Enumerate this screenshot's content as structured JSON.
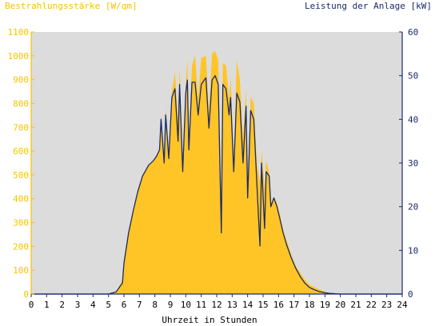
{
  "chart_data": {
    "type": "area",
    "y_left_label": "Bestrahlungsstärke [W/qm]",
    "y_right_label": "Leistung der Anlage [kW]",
    "xlabel": "Uhrzeit in Stunden",
    "x_ticks": [
      "0",
      "1",
      "2",
      "3",
      "4",
      "5",
      "6",
      "7",
      "8",
      "9",
      "10",
      "11",
      "12",
      "13",
      "14",
      "15",
      "16",
      "17",
      "18",
      "19",
      "20",
      "21",
      "22",
      "23",
      "24"
    ],
    "y_left_ticks": [
      "0",
      "100",
      "200",
      "300",
      "400",
      "500",
      "600",
      "700",
      "800",
      "900",
      "1000",
      "1100"
    ],
    "y_right_ticks": [
      "0",
      "10",
      "20",
      "30",
      "40",
      "50",
      "60"
    ],
    "xlim": [
      0,
      24
    ],
    "ylim_left": [
      0,
      1100
    ],
    "ylim_right": [
      0,
      60
    ],
    "grid": false,
    "series": [
      {
        "axis": "left",
        "style": "area",
        "color": "#ffc526",
        "x": [
          0,
          5,
          5.5,
          5.9,
          6,
          6.3,
          6.6,
          6.9,
          7.2,
          7.6,
          7.9,
          8.1,
          8.3,
          8.4,
          8.6,
          8.7,
          8.9,
          9.1,
          9.3,
          9.5,
          9.6,
          9.8,
          10.0,
          10.1,
          10.2,
          10.4,
          10.6,
          10.8,
          11.0,
          11.3,
          11.5,
          11.7,
          11.9,
          12.1,
          12.3,
          12.4,
          12.6,
          12.8,
          12.9,
          13.1,
          13.3,
          13.5,
          13.7,
          13.9,
          14.0,
          14.2,
          14.4,
          14.6,
          14.8,
          14.9,
          15.1,
          15.2,
          15.4,
          15.5,
          15.7,
          15.9,
          16.1,
          16.3,
          16.5,
          16.8,
          17.1,
          17.4,
          17.7,
          18.0,
          18.3,
          18.6,
          19.0,
          19.3,
          19.7,
          20.0,
          20.2,
          20.5,
          24
        ],
        "values": [
          0,
          0,
          10,
          60,
          150,
          270,
          360,
          440,
          500,
          540,
          560,
          580,
          610,
          750,
          560,
          780,
          600,
          850,
          930,
          720,
          950,
          560,
          880,
          990,
          640,
          960,
          1000,
          820,
          990,
          1000,
          760,
          1010,
          1020,
          980,
          400,
          970,
          960,
          820,
          910,
          560,
          980,
          900,
          650,
          860,
          470,
          830,
          800,
          550,
          470,
          600,
          440,
          560,
          510,
          380,
          410,
          380,
          330,
          270,
          230,
          170,
          120,
          90,
          60,
          40,
          30,
          20,
          10,
          5,
          3,
          2,
          0,
          0,
          0
        ]
      },
      {
        "axis": "right",
        "style": "line",
        "color": "#1a2a6c",
        "x": [
          0,
          5,
          5.5,
          5.9,
          6,
          6.3,
          6.6,
          6.9,
          7.2,
          7.6,
          7.9,
          8.1,
          8.3,
          8.4,
          8.6,
          8.7,
          8.9,
          9.1,
          9.3,
          9.5,
          9.6,
          9.8,
          10.0,
          10.1,
          10.2,
          10.4,
          10.6,
          10.8,
          11.0,
          11.3,
          11.5,
          11.7,
          11.9,
          12.1,
          12.3,
          12.4,
          12.6,
          12.8,
          12.9,
          13.1,
          13.3,
          13.5,
          13.7,
          13.9,
          14.0,
          14.2,
          14.4,
          14.6,
          14.8,
          14.9,
          15.1,
          15.2,
          15.4,
          15.5,
          15.7,
          15.9,
          16.1,
          16.3,
          16.5,
          16.8,
          17.1,
          17.4,
          17.7,
          18.0,
          18.3,
          18.6,
          19.0,
          19.3,
          19.7,
          20.0,
          20.2,
          20.5,
          24
        ],
        "values": [
          0,
          0,
          0.5,
          2.5,
          7,
          14,
          19,
          23.5,
          27,
          29.5,
          30.5,
          31.5,
          33,
          40,
          30,
          41,
          31,
          45,
          47,
          35,
          48,
          28,
          46,
          49,
          33,
          48.5,
          48.5,
          41,
          48,
          49.5,
          38,
          49,
          50,
          48,
          14,
          48,
          47,
          41,
          45,
          28,
          46,
          44,
          30,
          43,
          22,
          42,
          40,
          25,
          11,
          30,
          15,
          28,
          27,
          20,
          22,
          20,
          17,
          14,
          11.5,
          8.5,
          6,
          4,
          2.5,
          1.5,
          1,
          0.6,
          0.3,
          0.15,
          0.05,
          0,
          0,
          0,
          0
        ]
      }
    ]
  }
}
